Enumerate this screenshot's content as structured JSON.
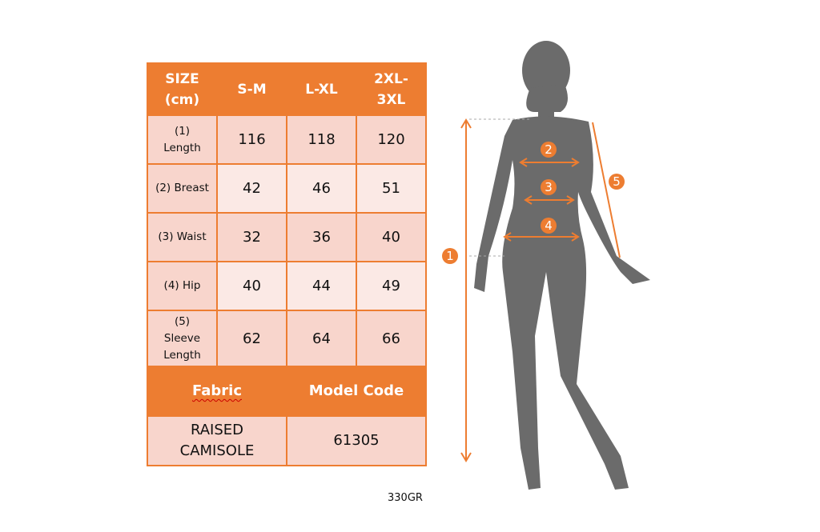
{
  "table": {
    "header": [
      "SIZE\n(cm)",
      "S-M",
      "L-XL",
      "2XL-\n3XL"
    ],
    "rows": [
      {
        "label": "(1)\nLength",
        "values": [
          "116",
          "118",
          "120"
        ]
      },
      {
        "label": "(2) Breast",
        "values": [
          "42",
          "46",
          "51"
        ]
      },
      {
        "label": "(3) Waist",
        "values": [
          "32",
          "36",
          "40"
        ]
      },
      {
        "label": "(4) Hip",
        "values": [
          "40",
          "44",
          "49"
        ]
      },
      {
        "label": "(5)\nSleeve\nLength",
        "values": [
          "62",
          "64",
          "66"
        ]
      }
    ],
    "footer_headers": [
      "Fabric",
      "Model Code"
    ],
    "footer_values": [
      "RAISED\nCAMISOLE",
      "61305"
    ]
  },
  "note": "330GR",
  "figure": {
    "markers": [
      "1",
      "2",
      "3",
      "4",
      "5"
    ]
  },
  "colors": {
    "accent": "#ed7d31",
    "cell_dark": "#f8d5cc",
    "cell_light": "#fbe9e5",
    "silhouette": "#6b6b6b"
  }
}
